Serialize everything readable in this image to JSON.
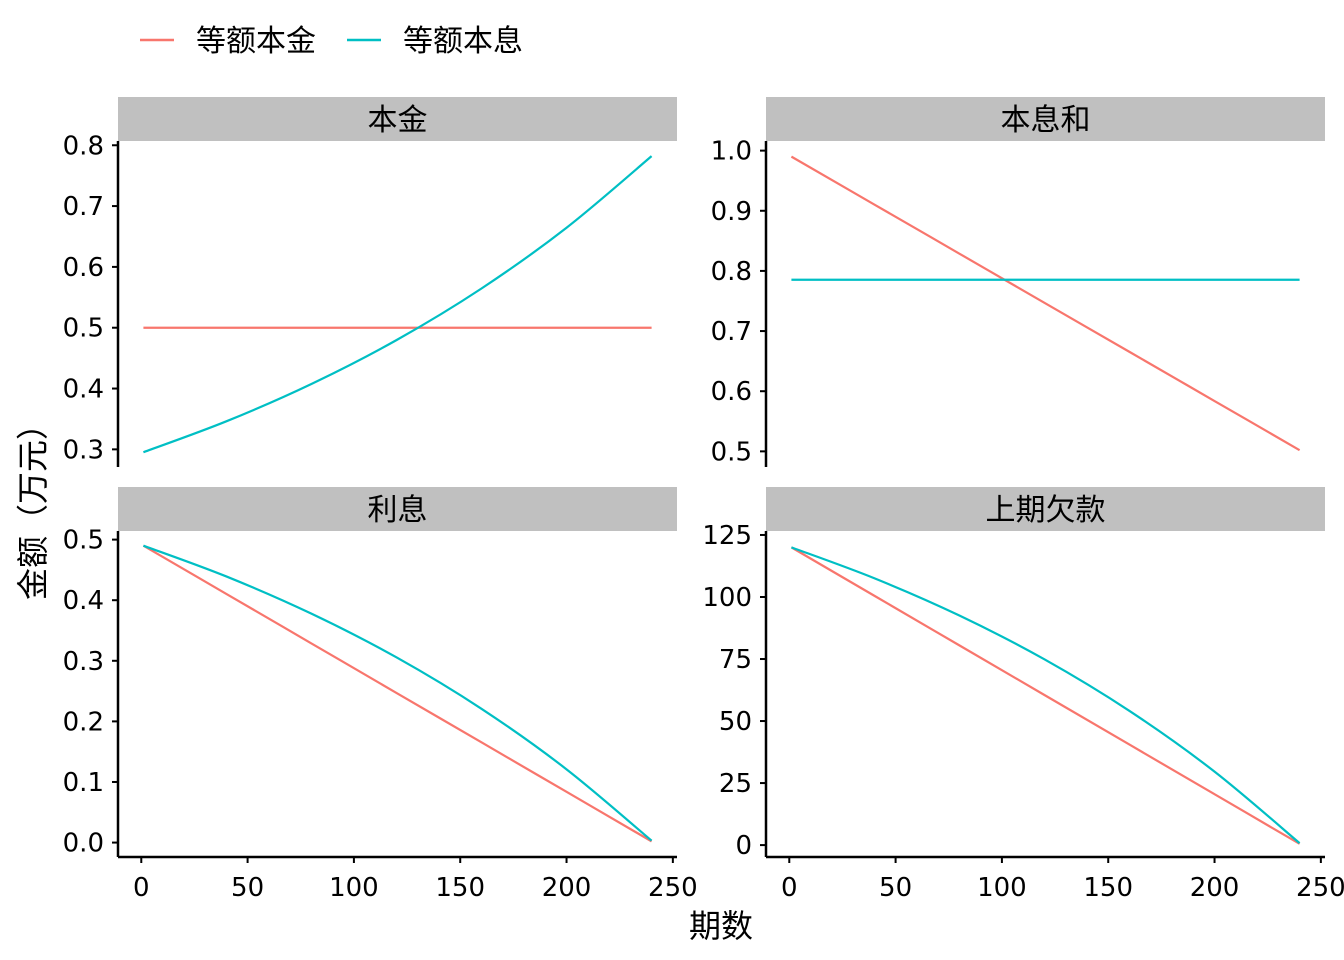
{
  "chart_data": {
    "type": "line",
    "xlabel": "期数",
    "ylabel": "金额（万元）",
    "legend": {
      "position": "top-left",
      "entries": [
        {
          "name": "等额本金",
          "color": "#F8766D"
        },
        {
          "name": "等额本息",
          "color": "#00BFC4"
        }
      ]
    },
    "x": [
      1,
      40,
      80,
      120,
      160,
      200,
      240
    ],
    "xlim": [
      -10.95,
      251.95
    ],
    "xticks": [
      0,
      50,
      100,
      150,
      200,
      250
    ],
    "grid": false,
    "panels": [
      {
        "title": "本金",
        "ylim": [
          0.271,
          0.807
        ],
        "yticks": [
          0.3,
          0.4,
          0.5,
          0.6,
          0.7,
          0.8
        ],
        "ytick_labels": [
          "0.3",
          "0.4",
          "0.5",
          "0.6",
          "0.7",
          "0.8"
        ],
        "series": [
          {
            "name": "等额本金",
            "values": [
              0.5,
              0.5,
              0.5,
              0.5,
              0.5,
              0.5,
              0.5
            ]
          },
          {
            "name": "等额本息",
            "values": [
              0.2953,
              0.3461,
              0.4075,
              0.4796,
              0.5645,
              0.6644,
              0.7821
            ]
          }
        ]
      },
      {
        "title": "本息和",
        "ylim": [
          0.474,
          1.016
        ],
        "yticks": [
          0.5,
          0.6,
          0.7,
          0.8,
          0.9,
          1.0
        ],
        "ytick_labels": [
          "0.5",
          "0.6",
          "0.7",
          "0.8",
          "0.9",
          "1.0"
        ],
        "series": [
          {
            "name": "等额本金",
            "values": [
              0.99,
              0.9104,
              0.8287,
              0.747,
              0.6654,
              0.5837,
              0.502
            ]
          },
          {
            "name": "等额本息",
            "values": [
              0.7853,
              0.7853,
              0.7853,
              0.7853,
              0.7853,
              0.7853,
              0.7853
            ]
          }
        ]
      },
      {
        "title": "利息",
        "ylim": [
          -0.0238,
          0.5142
        ],
        "yticks": [
          0,
          0.1,
          0.2,
          0.3,
          0.4,
          0.5
        ],
        "ytick_labels": [
          "0.0",
          "0.1",
          "0.2",
          "0.3",
          "0.4",
          "0.5"
        ],
        "series": [
          {
            "name": "等额本金",
            "values": [
              0.49,
              0.4104,
              0.3287,
              0.247,
              0.1654,
              0.0837,
              0.002
            ]
          },
          {
            "name": "等额本息",
            "values": [
              0.49,
              0.4392,
              0.3778,
              0.3057,
              0.2208,
              0.1209,
              0.0032
            ]
          }
        ]
      },
      {
        "title": "上期欠款",
        "ylim": [
          -4.8,
          126.6
        ],
        "yticks": [
          0,
          25,
          50,
          75,
          100,
          125
        ],
        "ytick_labels": [
          "0",
          "25",
          "50",
          "75",
          "100",
          "125"
        ],
        "series": [
          {
            "name": "等额本金",
            "values": [
              120,
              100.5,
              80.5,
              60.5,
              40.5,
              20.5,
              0.5
            ]
          },
          {
            "name": "等额本息",
            "values": [
              120,
              107.55,
              92.53,
              74.87,
              54.07,
              29.61,
              0.79
            ]
          }
        ]
      }
    ]
  }
}
